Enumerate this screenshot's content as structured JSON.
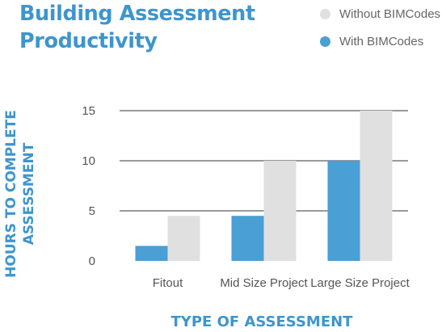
{
  "title_lines": [
    "Building Assessment",
    "Productivity"
  ],
  "colors": {
    "accent": "#3e95cd",
    "with": "#4a9fd4",
    "without": "#e0e0e0",
    "axis_text": "#555555",
    "grid": "#333333"
  },
  "chart_data": {
    "type": "bar",
    "title": "Building Assessment Productivity",
    "categories": [
      "Fitout",
      "Mid Size Project",
      "Large Size Project"
    ],
    "series": [
      {
        "name": "With BIMCodes",
        "values": [
          1.5,
          4.5,
          10
        ]
      },
      {
        "name": "Without BIMCodes",
        "values": [
          4.5,
          10,
          15
        ]
      }
    ],
    "xlabel": "TYPE OF ASSESSMENT",
    "ylabel": [
      "HOURS TO COMPLETE",
      "ASSESSMENT"
    ],
    "ylim": [
      0,
      15
    ],
    "yticks": [
      "0",
      "5",
      "10",
      "15"
    ],
    "grid": true,
    "legend_position": "top-right",
    "legend": [
      {
        "label": "Without BIMCodes",
        "color": "#e0e0e0"
      },
      {
        "label": "With BIMCodes",
        "color": "#4a9fd4"
      }
    ]
  }
}
